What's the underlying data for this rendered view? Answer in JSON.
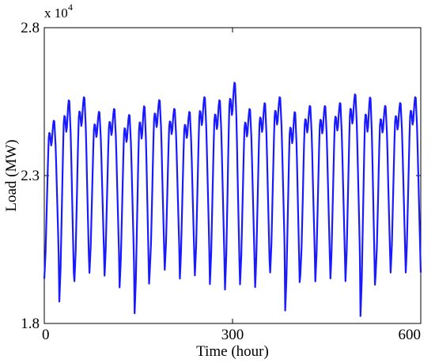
{
  "chart_data": {
    "type": "line",
    "xlabel": "Time (hour)",
    "ylabel": "Load (MW)",
    "y_multiplier_label": "x 10",
    "y_multiplier_exponent": "4",
    "xlim": [
      0,
      600
    ],
    "ylim": [
      18000,
      28000
    ],
    "x_ticks": [
      0,
      300,
      600
    ],
    "x_tick_labels": [
      "0",
      "300",
      "600"
    ],
    "y_ticks": [
      18000,
      23000,
      28000
    ],
    "y_tick_labels": [
      "1.8",
      "2.3",
      "2.8"
    ],
    "grid": false,
    "legend": "none",
    "series": [
      {
        "color": "#1a1aff",
        "period_hours": 24,
        "daily_peaks": [
          24900,
          25600,
          25700,
          25200,
          25300,
          25100,
          25400,
          25600,
          25300,
          25200,
          25700,
          25600,
          26200,
          25300,
          25500,
          25700,
          25200,
          25400,
          25400,
          25500,
          25800,
          25700,
          25400,
          25500,
          25700
        ],
        "daily_troughs": [
          19400,
          18600,
          19300,
          19600,
          19500,
          19100,
          18200,
          19600,
          19700,
          19400,
          19500,
          19200,
          19000,
          19200,
          19100,
          19600,
          18300,
          19500,
          19300,
          19400,
          19300,
          18100,
          19500,
          19600,
          19600
        ]
      }
    ]
  }
}
